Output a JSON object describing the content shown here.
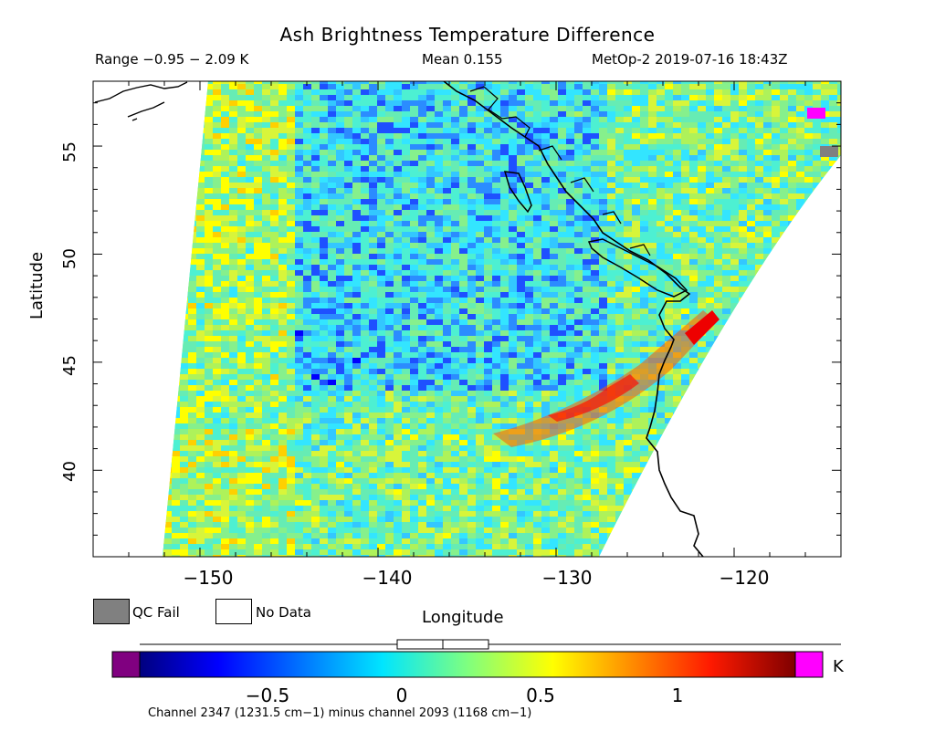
{
  "title": "Ash Brightness Temperature Difference",
  "range_text": "Range −0.95 − 2.09 K",
  "mean_text": "Mean 0.155",
  "satellite_text": "MetOp-2 2019-07-16 18:43Z",
  "map": {
    "y_axis_label": "Latitude",
    "x_axis_label": "Longitude",
    "lat_ticks": [
      "55",
      "50",
      "45",
      "40"
    ],
    "lon_ticks": [
      "−150",
      "−140",
      "−130",
      "−120"
    ],
    "lon_range": [
      -156,
      -114
    ],
    "lat_range": [
      36,
      58
    ],
    "region": "Northeast Pacific / US-Canada west coast"
  },
  "legend": {
    "qc_fail": {
      "label": "QC Fail",
      "color": "#808080"
    },
    "no_data": {
      "label": "No Data",
      "color": "#ffffff"
    }
  },
  "colorbar": {
    "ticks": [
      "−0.5",
      "0",
      "0.5",
      "1"
    ],
    "unit": "K",
    "under_color": "#800080",
    "over_color": "#ff00ff",
    "min": -1.0,
    "max": 1.43
  },
  "footnote": "Channel 2347 (1231.5 cm−1) minus channel 2093 (1168 cm−1)"
}
